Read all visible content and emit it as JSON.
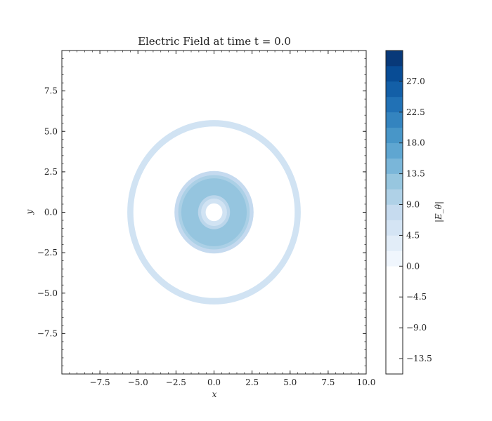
{
  "chart_data": {
    "type": "heatmap",
    "title": "Electric Field at time t = 0.0",
    "xlabel": "x",
    "ylabel": "y",
    "xlim": [
      -10.0,
      10.0
    ],
    "ylim": [
      -10.0,
      10.0
    ],
    "xticks": [
      -7.5,
      -5.0,
      -2.5,
      0.0,
      2.5,
      5.0,
      7.5,
      10.0
    ],
    "xtick_labels": [
      "−7.5",
      "−5.0",
      "−2.5",
      "0.0",
      "2.5",
      "5.0",
      "7.5",
      "10.0"
    ],
    "yticks": [
      -7.5,
      -5.0,
      -2.5,
      0.0,
      2.5,
      5.0,
      7.5
    ],
    "ytick_labels": [
      "−7.5",
      "−5.0",
      "−2.5",
      "0.0",
      "2.5",
      "5.0",
      "7.5"
    ],
    "colorbar": {
      "label": "|E_θ|",
      "vmin": -15.75,
      "vmax": 31.5,
      "levels": [
        -15.75,
        -13.5,
        -11.25,
        -9.0,
        -6.75,
        -4.5,
        -2.25,
        0.0,
        2.25,
        4.5,
        6.75,
        9.0,
        11.25,
        13.5,
        15.75,
        18.0,
        20.25,
        22.5,
        24.75,
        27.0,
        29.25,
        31.5
      ],
      "ticks": [
        -13.5,
        -9.0,
        -4.5,
        0.0,
        4.5,
        9.0,
        13.5,
        18.0,
        22.5,
        27.0
      ],
      "tick_labels": [
        "−13.5",
        "−9.0",
        "−4.5",
        "0.0",
        "4.5",
        "9.0",
        "13.5",
        "18.0",
        "22.5",
        "27.0"
      ],
      "colormap": "Blues"
    },
    "field_regions": [
      {
        "name": "outer-ring",
        "center": [
          0,
          0
        ],
        "rx_outer": 5.7,
        "ry_outer": 5.7,
        "rx_inner": 5.3,
        "ry_inner": 5.3,
        "value": 6.0
      },
      {
        "name": "inner-blob-outer-band",
        "center": [
          0,
          0
        ],
        "rx": 2.6,
        "ry": 2.55,
        "value": 8.0
      },
      {
        "name": "inner-blob-band-2",
        "center": [
          0,
          0
        ],
        "rx": 2.35,
        "ry": 2.3,
        "value": 10.5
      },
      {
        "name": "inner-blob-core",
        "center": [
          0,
          0
        ],
        "rx": 2.15,
        "ry": 2.1,
        "value": 12.5
      },
      {
        "name": "inner-hole-band",
        "center": [
          0,
          0
        ],
        "rx": 1.05,
        "ry": 1.05,
        "value": 9.0
      },
      {
        "name": "inner-hole-band-2",
        "center": [
          0,
          0
        ],
        "rx": 0.85,
        "ry": 0.85,
        "value": 6.0
      },
      {
        "name": "inner-hole",
        "center": [
          0,
          0
        ],
        "rx": 0.55,
        "ry": 0.55,
        "value": 0.0
      }
    ],
    "grid": false
  }
}
